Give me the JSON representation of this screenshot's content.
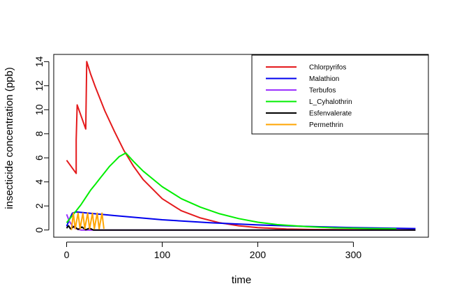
{
  "chart_data": {
    "type": "line",
    "title": "",
    "xlabel": "time",
    "ylabel": "insecticide concentration (ppb)",
    "xlim": [
      -13.5,
      378.5
    ],
    "ylim": [
      -0.6,
      14.6
    ],
    "x_ticks": [
      0,
      100,
      200,
      300
    ],
    "x_tick_labels": [
      "0",
      "100",
      "200",
      "300"
    ],
    "y_ticks": [
      0,
      2,
      4,
      6,
      8,
      10,
      12,
      14
    ],
    "y_tick_labels": [
      "0",
      "2",
      "4",
      "6",
      "8",
      "10",
      "12",
      "14"
    ],
    "grid": false,
    "legend": {
      "position": "top-right"
    },
    "series": [
      {
        "name": "Chlorpyrifos",
        "color": "#e41a1c",
        "points": [
          [
            0,
            5.8
          ],
          [
            10,
            4.7
          ],
          [
            10,
            7.5
          ],
          [
            11,
            10.4
          ],
          [
            20,
            8.4
          ],
          [
            21,
            14.0
          ],
          [
            25,
            13.0
          ],
          [
            30,
            11.9
          ],
          [
            40,
            9.9
          ],
          [
            50,
            8.2
          ],
          [
            60,
            6.6
          ],
          [
            70,
            5.3
          ],
          [
            80,
            4.2
          ],
          [
            100,
            2.6
          ],
          [
            120,
            1.6
          ],
          [
            140,
            1.0
          ],
          [
            160,
            0.6
          ],
          [
            180,
            0.35
          ],
          [
            200,
            0.2
          ],
          [
            230,
            0.08
          ],
          [
            260,
            0.04
          ],
          [
            300,
            0.02
          ],
          [
            365,
            0.01
          ]
        ]
      },
      {
        "name": "Malathion",
        "color": "#0000ee",
        "points": [
          [
            0,
            0.3
          ],
          [
            3,
            0.9
          ],
          [
            6,
            1.4
          ],
          [
            10,
            1.5
          ],
          [
            50,
            1.2
          ],
          [
            100,
            0.85
          ],
          [
            150,
            0.6
          ],
          [
            200,
            0.42
          ],
          [
            250,
            0.3
          ],
          [
            300,
            0.2
          ],
          [
            365,
            0.12
          ]
        ]
      },
      {
        "name": "Terbufos",
        "color": "#9b30ff",
        "points": [
          [
            0,
            1.3
          ],
          [
            3,
            0.7
          ],
          [
            6,
            0.35
          ],
          [
            9,
            0.15
          ],
          [
            12,
            0.05
          ],
          [
            15,
            0.0
          ],
          [
            365,
            0.0
          ]
        ]
      },
      {
        "name": "L_Cyhalothrin",
        "color": "#00ee00",
        "points": [
          [
            0,
            0.6
          ],
          [
            5,
            1.1
          ],
          [
            10,
            1.6
          ],
          [
            15,
            2.1
          ],
          [
            20,
            2.7
          ],
          [
            25,
            3.3
          ],
          [
            30,
            3.8
          ],
          [
            35,
            4.3
          ],
          [
            40,
            4.8
          ],
          [
            45,
            5.3
          ],
          [
            50,
            5.7
          ],
          [
            55,
            6.1
          ],
          [
            62,
            6.4
          ],
          [
            70,
            5.7
          ],
          [
            80,
            4.9
          ],
          [
            100,
            3.6
          ],
          [
            120,
            2.6
          ],
          [
            140,
            1.9
          ],
          [
            160,
            1.35
          ],
          [
            180,
            0.95
          ],
          [
            200,
            0.65
          ],
          [
            220,
            0.45
          ],
          [
            250,
            0.28
          ],
          [
            280,
            0.18
          ],
          [
            320,
            0.12
          ],
          [
            345,
            0.1
          ]
        ]
      },
      {
        "name": "Esfenvalerate",
        "color": "#000000",
        "points": [
          [
            0,
            0.15
          ],
          [
            2,
            0.35
          ],
          [
            4,
            0.1
          ],
          [
            8,
            0.3
          ],
          [
            12,
            0.05
          ],
          [
            16,
            0.25
          ],
          [
            20,
            0.02
          ],
          [
            24,
            0.15
          ],
          [
            28,
            0.0
          ],
          [
            365,
            0.0
          ]
        ]
      },
      {
        "name": "Permethrin",
        "color": "#ffa500",
        "points": [
          [
            5,
            0.0
          ],
          [
            7,
            1.4
          ],
          [
            9,
            0.1
          ],
          [
            12,
            1.4
          ],
          [
            14,
            0.1
          ],
          [
            17,
            1.4
          ],
          [
            19,
            0.1
          ],
          [
            22,
            1.4
          ],
          [
            24,
            0.1
          ],
          [
            27,
            1.4
          ],
          [
            29,
            0.1
          ],
          [
            32,
            1.4
          ],
          [
            34,
            0.1
          ],
          [
            37,
            1.4
          ],
          [
            39,
            0.1
          ]
        ]
      }
    ]
  }
}
